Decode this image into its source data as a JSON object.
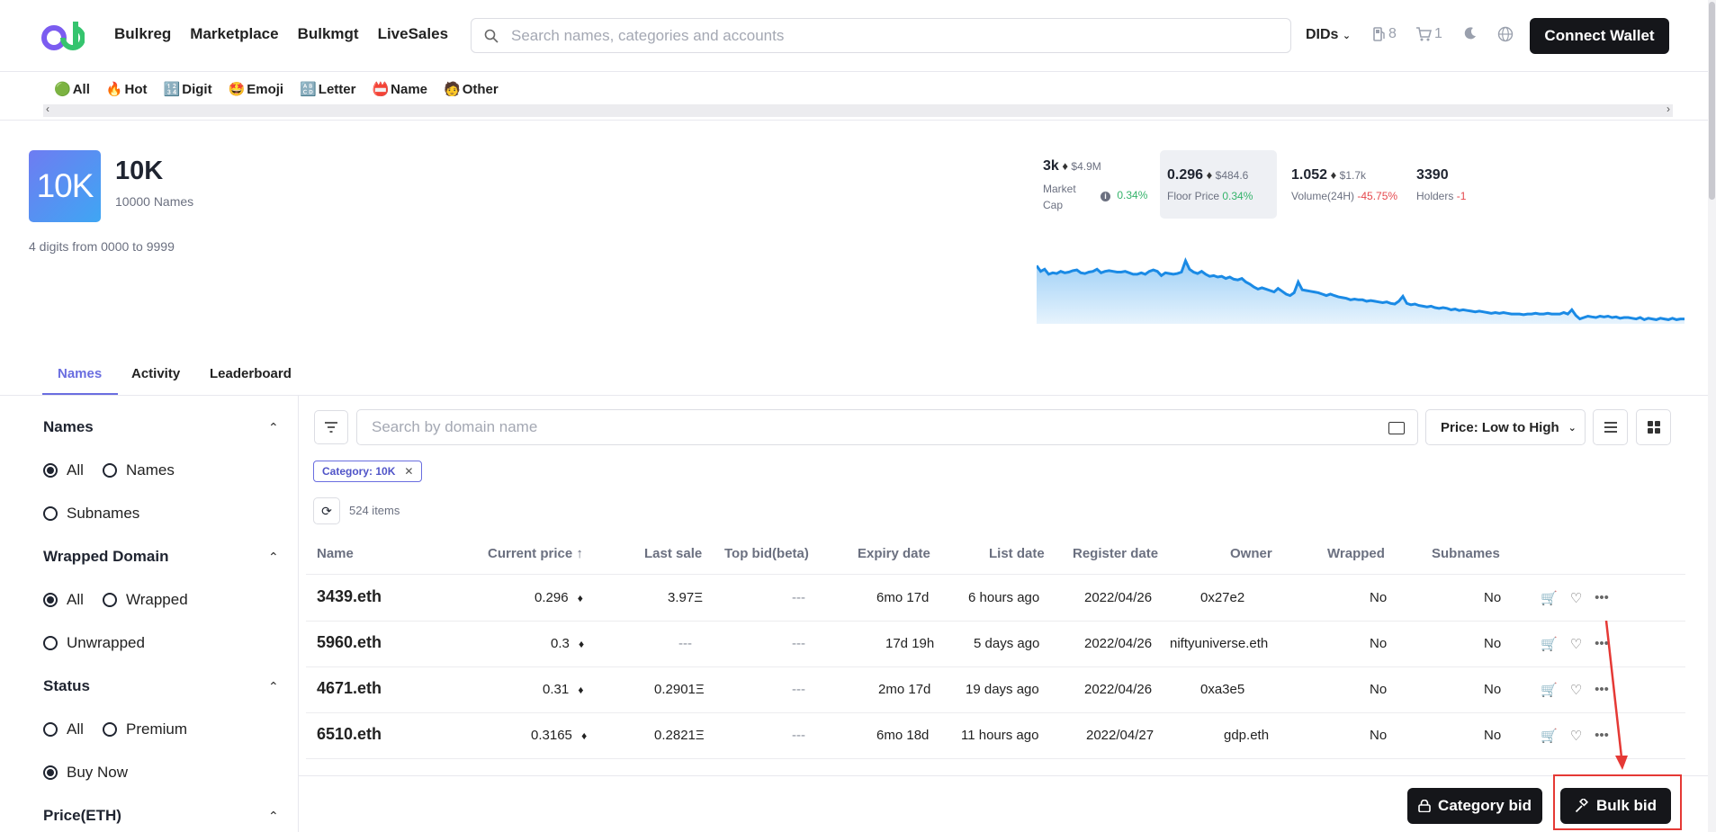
{
  "nav": {
    "links": [
      "Bulkreg",
      "Marketplace",
      "Bulkmgt",
      "LiveSales"
    ],
    "search_placeholder": "Search names, categories and accounts",
    "dids_label": "DIDs",
    "gas_count": "8",
    "cart_count": "1",
    "connect_label": "Connect Wallet"
  },
  "categories": [
    {
      "emoji": "🟢",
      "label": "All"
    },
    {
      "emoji": "🔥",
      "label": "Hot"
    },
    {
      "emoji": "🔢",
      "label": "Digit"
    },
    {
      "emoji": "🤩",
      "label": "Emoji"
    },
    {
      "emoji": "🔠",
      "label": "Letter"
    },
    {
      "emoji": "📛",
      "label": "Name"
    },
    {
      "emoji": "🧑",
      "label": "Other"
    }
  ],
  "collection": {
    "avatar_text": "10K",
    "title": "10K",
    "count_label": "10000 Names",
    "description": "4 digits from 0000 to 9999"
  },
  "stats": {
    "market_cap": {
      "value": "3k",
      "usd": "$4.9M",
      "label": "Market Cap",
      "change": "0.34%"
    },
    "floor": {
      "value": "0.296",
      "usd": "$484.6",
      "label": "Floor Price",
      "change": "0.34%"
    },
    "volume": {
      "value": "1.052",
      "usd": "$1.7k",
      "label": "Volume(24H)",
      "change": "-45.75%"
    },
    "holders": {
      "value": "3390",
      "label": "Holders",
      "change": "-1"
    }
  },
  "chart_data": {
    "type": "area",
    "title": "",
    "xlabel": "",
    "ylabel": "",
    "color": "#1a8ae5",
    "values": [
      0.78,
      0.7,
      0.73,
      0.66,
      0.68,
      0.67,
      0.7,
      0.68,
      0.69,
      0.71,
      0.72,
      0.68,
      0.67,
      0.69,
      0.7,
      0.73,
      0.68,
      0.7,
      0.71,
      0.7,
      0.69,
      0.69,
      0.7,
      0.68,
      0.66,
      0.66,
      0.68,
      0.66,
      0.7,
      0.72,
      0.7,
      0.64,
      0.68,
      0.67,
      0.66,
      0.67,
      0.69,
      0.85,
      0.73,
      0.69,
      0.67,
      0.7,
      0.66,
      0.63,
      0.64,
      0.62,
      0.63,
      0.6,
      0.62,
      0.59,
      0.58,
      0.6,
      0.55,
      0.52,
      0.48,
      0.45,
      0.47,
      0.45,
      0.43,
      0.41,
      0.46,
      0.42,
      0.38,
      0.36,
      0.4,
      0.55,
      0.44,
      0.43,
      0.42,
      0.41,
      0.4,
      0.38,
      0.36,
      0.38,
      0.36,
      0.34,
      0.33,
      0.32,
      0.3,
      0.31,
      0.3,
      0.3,
      0.28,
      0.29,
      0.28,
      0.27,
      0.26,
      0.27,
      0.25,
      0.24,
      0.28,
      0.35,
      0.25,
      0.23,
      0.24,
      0.22,
      0.21,
      0.2,
      0.21,
      0.19,
      0.18,
      0.19,
      0.18,
      0.16,
      0.17,
      0.15,
      0.16,
      0.15,
      0.14,
      0.13,
      0.14,
      0.13,
      0.12,
      0.11,
      0.12,
      0.11,
      0.12,
      0.11,
      0.1,
      0.1,
      0.1,
      0.09,
      0.1,
      0.1,
      0.11,
      0.1,
      0.1,
      0.11,
      0.1,
      0.1,
      0.1,
      0.12,
      0.1,
      0.16,
      0.08,
      0.03,
      0.05,
      0.07,
      0.06,
      0.05,
      0.07,
      0.06,
      0.07,
      0.05,
      0.06,
      0.04,
      0.05,
      0.05,
      0.04,
      0.03,
      0.05,
      0.02,
      0.04,
      0.03,
      0.02,
      0.04,
      0.03,
      0.02,
      0.04,
      0.02,
      0.03,
      0.03
    ]
  },
  "tabs": [
    "Names",
    "Activity",
    "Leaderboard"
  ],
  "filters": {
    "names": {
      "title": "Names",
      "options": [
        "All",
        "Names",
        "Subnames"
      ]
    },
    "wrapped": {
      "title": "Wrapped Domain",
      "options": [
        "All",
        "Wrapped",
        "Unwrapped"
      ]
    },
    "status": {
      "title": "Status",
      "options": [
        "All",
        "Premium",
        "Buy Now"
      ]
    },
    "price": {
      "title": "Price(ETH)"
    }
  },
  "toolbar": {
    "search_placeholder": "Search by domain name",
    "sort_label": "Price: Low to High",
    "chip_label": "Category: 10K",
    "items_count": "524 items"
  },
  "table": {
    "headers": [
      "Name",
      "Current price",
      "Last sale",
      "Top bid(beta)",
      "Expiry date",
      "List date",
      "Register date",
      "Owner",
      "Wrapped",
      "Subnames"
    ],
    "rows": [
      {
        "name": "3439.eth",
        "price": "0.296",
        "last_sale": "3.97Ξ",
        "top_bid": "---",
        "expiry": "6mo 17d",
        "list_date": "6 hours ago",
        "register": "2022/04/26",
        "owner": "0x27e2",
        "wrapped": "No",
        "subnames": "No"
      },
      {
        "name": "5960.eth",
        "price": "0.3",
        "last_sale": "---",
        "top_bid": "---",
        "expiry": "17d 19h",
        "list_date": "5 days ago",
        "register": "2022/04/26",
        "owner": "niftyuniverse.eth",
        "wrapped": "No",
        "subnames": "No"
      },
      {
        "name": "4671.eth",
        "price": "0.31",
        "last_sale": "0.2901Ξ",
        "top_bid": "---",
        "expiry": "2mo 17d",
        "list_date": "19 days ago",
        "register": "2022/04/26",
        "owner": "0xa3e5",
        "wrapped": "No",
        "subnames": "No"
      },
      {
        "name": "6510.eth",
        "price": "0.3165",
        "last_sale": "0.2821Ξ",
        "top_bid": "---",
        "expiry": "6mo 18d",
        "list_date": "11 hours ago",
        "register": "2022/04/27",
        "owner": "gdp.eth",
        "wrapped": "No",
        "subnames": "No"
      }
    ]
  },
  "bottom": {
    "category_bid": "Category bid",
    "bulk_bid": "Bulk bid"
  },
  "colors": {
    "accent": "#6a6ee0",
    "primary_button": "#15161a",
    "positive": "#34b36a",
    "negative": "#e5484d",
    "highlight": "#e53935"
  }
}
